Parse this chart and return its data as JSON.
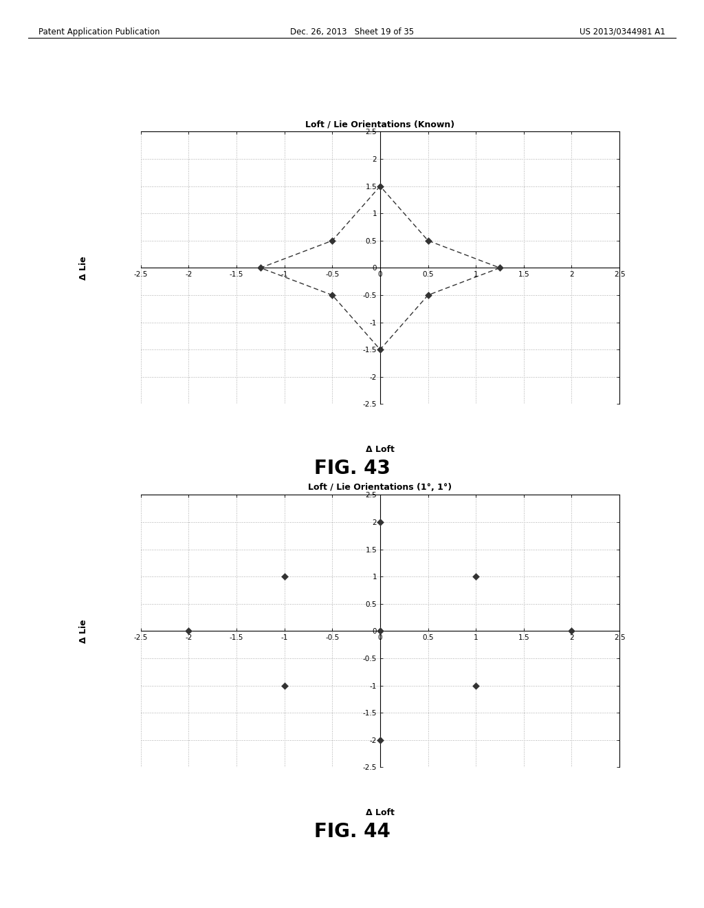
{
  "fig43": {
    "title": "Loft / Lie Orientations (Known)",
    "xlabel": "Δ Loft",
    "ylabel": "Δ Lie",
    "xlim": [
      -2.5,
      2.5
    ],
    "ylim": [
      -2.5,
      2.5
    ],
    "xticks": [
      -2.5,
      -2,
      -1.5,
      -1,
      -0.5,
      0,
      0.5,
      1,
      1.5,
      2,
      2.5
    ],
    "yticks": [
      -2.5,
      -2,
      -1.5,
      -1,
      -0.5,
      0,
      0.5,
      1,
      1.5,
      2,
      2.5
    ],
    "points_x": [
      0,
      -0.5,
      0.5,
      -1.25,
      1.25,
      -0.5,
      0.5,
      0
    ],
    "points_y": [
      1.5,
      0.5,
      0.5,
      0,
      0,
      -0.5,
      -0.5,
      -1.5
    ],
    "dashed_line_x": [
      0,
      -0.5,
      -1.25,
      -0.5,
      0,
      0.5,
      1.25,
      0.5,
      0
    ],
    "dashed_line_y": [
      1.5,
      0.5,
      0,
      -0.5,
      -1.5,
      -0.5,
      0,
      0.5,
      1.5
    ]
  },
  "fig44": {
    "title": "Loft / Lie Orientations (1°, 1°)",
    "xlabel": "Δ Loft",
    "ylabel": "Δ Lie",
    "xlim": [
      -2.5,
      2.5
    ],
    "ylim": [
      -2.5,
      2.5
    ],
    "xticks": [
      -2.5,
      -2,
      -1.5,
      -1,
      -0.5,
      0,
      0.5,
      1,
      1.5,
      2,
      2.5
    ],
    "yticks": [
      -2.5,
      -2,
      -1.5,
      -1,
      -0.5,
      0,
      0.5,
      1,
      1.5,
      2,
      2.5
    ],
    "points_x": [
      0,
      -1,
      1,
      -2,
      0,
      2,
      -1,
      1,
      0
    ],
    "points_y": [
      2,
      1,
      1,
      0,
      0,
      0,
      -1,
      -1,
      -2
    ]
  },
  "fig43_label": "FIG. 43",
  "fig44_label": "FIG. 44",
  "header_left": "Patent Application Publication",
  "header_center": "Dec. 26, 2013   Sheet 19 of 35",
  "header_right": "US 2013/0344981 A1",
  "background_color": "#ffffff",
  "plot_background": "#ffffff",
  "grid_color": "#aaaaaa",
  "line_color": "#333333",
  "marker_color": "#333333",
  "title_fontsize": 9,
  "label_fontsize": 9,
  "tick_fontsize": 7.5,
  "fig_label_fontsize": 20,
  "header_fontsize": 8.5
}
